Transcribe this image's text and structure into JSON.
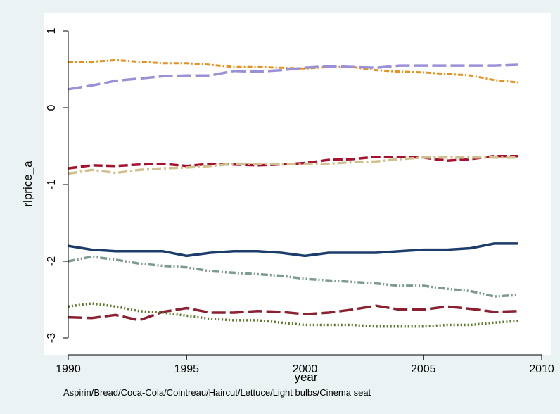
{
  "chart_data": {
    "type": "line",
    "xlabel": "year",
    "ylabel": "rlprice_a",
    "note": "Aspirin/Bread/Coca-Cola/Cointreau/Haircut/Lettuce/Light bulbs/Cinema seat",
    "xlim": [
      1990,
      2010
    ],
    "ylim": [
      -3,
      1
    ],
    "xticks": [
      1990,
      1995,
      2000,
      2005,
      2010
    ],
    "yticks": [
      -3,
      -2,
      -1,
      0,
      1
    ],
    "x": [
      1990,
      1991,
      1992,
      1993,
      1994,
      1995,
      1996,
      1997,
      1998,
      1999,
      2000,
      2001,
      2002,
      2003,
      2004,
      2005,
      2006,
      2007,
      2008,
      2009
    ],
    "series": [
      {
        "color": "#e8901e",
        "style": "dotted-dash",
        "width": 3,
        "values": [
          0.6,
          0.6,
          0.62,
          0.6,
          0.58,
          0.58,
          0.56,
          0.53,
          0.53,
          0.52,
          0.51,
          0.53,
          0.53,
          0.49,
          0.47,
          0.46,
          0.44,
          0.42,
          0.36,
          0.33
        ]
      },
      {
        "color": "#9a90d8",
        "style": "long-dash",
        "width": 3.5,
        "values": [
          0.24,
          0.29,
          0.35,
          0.38,
          0.41,
          0.42,
          0.42,
          0.48,
          0.47,
          0.49,
          0.52,
          0.54,
          0.53,
          0.52,
          0.55,
          0.55,
          0.55,
          0.55,
          0.55,
          0.56
        ]
      },
      {
        "color": "#a8102e",
        "style": "dash",
        "width": 3.5,
        "values": [
          -0.79,
          -0.75,
          -0.76,
          -0.74,
          -0.73,
          -0.76,
          -0.73,
          -0.74,
          -0.75,
          -0.74,
          -0.72,
          -0.68,
          -0.67,
          -0.64,
          -0.64,
          -0.65,
          -0.69,
          -0.67,
          -0.63,
          -0.63
        ]
      },
      {
        "color": "#cfc08e",
        "style": "dash-dot",
        "width": 3.5,
        "values": [
          -0.86,
          -0.81,
          -0.85,
          -0.81,
          -0.79,
          -0.78,
          -0.76,
          -0.73,
          -0.73,
          -0.74,
          -0.73,
          -0.73,
          -0.71,
          -0.7,
          -0.67,
          -0.65,
          -0.65,
          -0.65,
          -0.65,
          -0.65
        ]
      },
      {
        "color": "#1c3d6b",
        "style": "solid",
        "width": 3.5,
        "values": [
          -1.8,
          -1.85,
          -1.87,
          -1.87,
          -1.87,
          -1.93,
          -1.89,
          -1.87,
          -1.87,
          -1.89,
          -1.93,
          -1.89,
          -1.89,
          -1.89,
          -1.87,
          -1.85,
          -1.85,
          -1.83,
          -1.77,
          -1.77
        ]
      },
      {
        "color": "#7e9a95",
        "style": "dash-dot-dot",
        "width": 3.5,
        "values": [
          -2.0,
          -1.94,
          -1.98,
          -2.03,
          -2.06,
          -2.08,
          -2.13,
          -2.15,
          -2.17,
          -2.19,
          -2.23,
          -2.25,
          -2.27,
          -2.29,
          -2.32,
          -2.32,
          -2.36,
          -2.39,
          -2.46,
          -2.44
        ]
      },
      {
        "color": "#8b2030",
        "style": "long-dash",
        "width": 3.5,
        "values": [
          -2.73,
          -2.74,
          -2.7,
          -2.77,
          -2.66,
          -2.61,
          -2.67,
          -2.67,
          -2.65,
          -2.66,
          -2.69,
          -2.67,
          -2.63,
          -2.58,
          -2.63,
          -2.63,
          -2.59,
          -2.62,
          -2.66,
          -2.65
        ]
      },
      {
        "color": "#5c7a2c",
        "style": "dotted",
        "width": 3.5,
        "values": [
          -2.59,
          -2.55,
          -2.59,
          -2.65,
          -2.67,
          -2.71,
          -2.75,
          -2.77,
          -2.77,
          -2.8,
          -2.83,
          -2.83,
          -2.83,
          -2.85,
          -2.85,
          -2.85,
          -2.83,
          -2.83,
          -2.8,
          -2.78
        ]
      }
    ],
    "grid": false,
    "legend": "none"
  }
}
